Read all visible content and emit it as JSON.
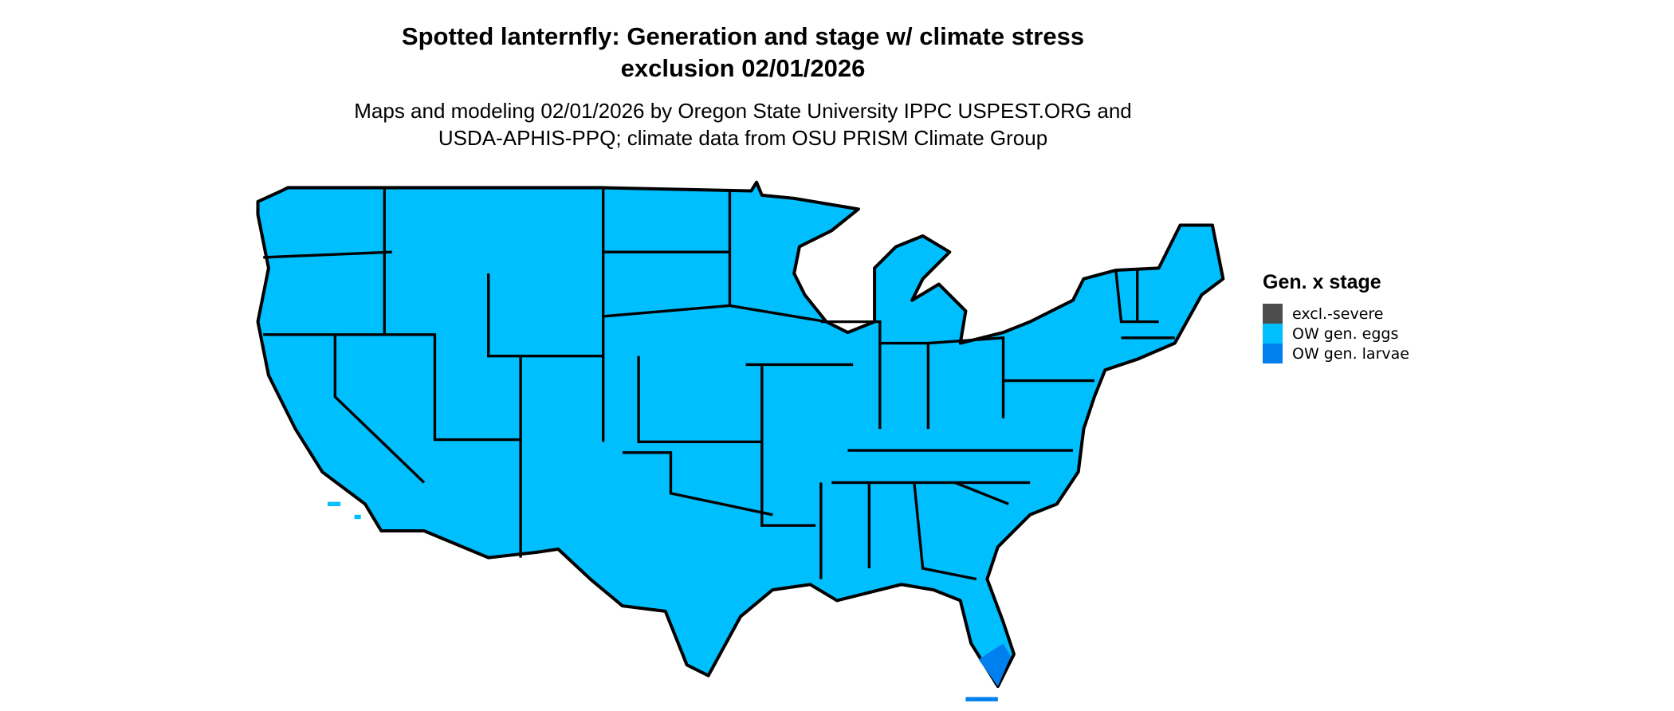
{
  "title_line1": "Spotted lanternfly: Generation and stage w/ climate stress",
  "title_line2": "exclusion 02/01/2026",
  "subtitle_line1": "Maps and modeling 02/01/2026 by Oregon State University IPPC USPEST.ORG and",
  "subtitle_line2": "USDA-APHIS-PPQ; climate data from OSU PRISM Climate Group",
  "legend": {
    "title": "Gen. x stage",
    "items": [
      {
        "label": "excl.-severe",
        "color": "#4d4d4d"
      },
      {
        "label": "OW gen. eggs",
        "color": "#00bfff"
      },
      {
        "label": "OW gen. larvae",
        "color": "#0080ee"
      }
    ]
  },
  "map": {
    "region": "Contiguous United States",
    "predominant_class": "OW gen. eggs",
    "larvae_area": "southern Florida",
    "fill_color": "#00bfff",
    "border_color": "#000000"
  }
}
